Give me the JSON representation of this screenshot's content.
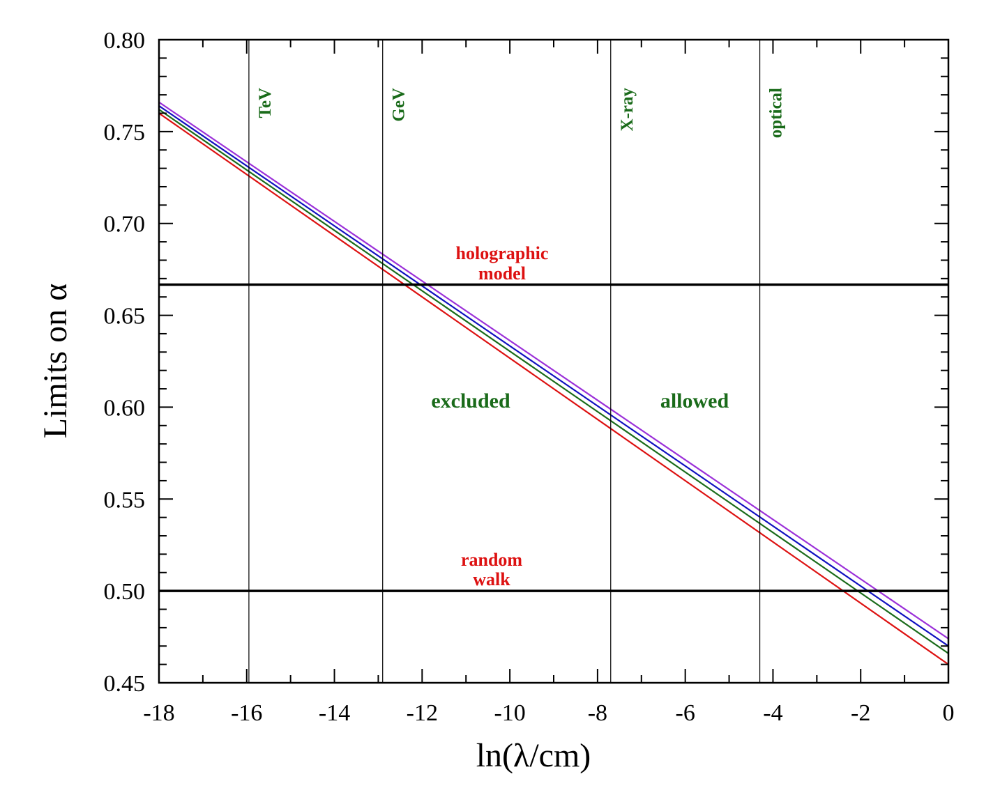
{
  "chart_data": {
    "type": "line",
    "xlabel": "ln(λ/cm)",
    "ylabel": "Limits on α",
    "xlim": [
      -18,
      0
    ],
    "ylim": [
      0.45,
      0.8
    ],
    "x_ticks": [
      -18,
      -16,
      -14,
      -12,
      -10,
      -8,
      -6,
      -4,
      -2,
      0
    ],
    "x_tick_labels": [
      "-18",
      "-16",
      "-14",
      "-12",
      "-10",
      "-8",
      "-6",
      "-4",
      "-2",
      "0"
    ],
    "y_ticks": [
      0.45,
      0.5,
      0.55,
      0.6,
      0.65,
      0.7,
      0.75,
      0.8
    ],
    "y_tick_labels": [
      "0.45",
      "0.50",
      "0.55",
      "0.60",
      "0.65",
      "0.70",
      "0.75",
      "0.80"
    ],
    "grid": false,
    "series": [
      {
        "color": "#9b30d9",
        "x": [
          -18,
          0
        ],
        "y": [
          0.766,
          0.474
        ]
      },
      {
        "color": "#1010c0",
        "x": [
          -18,
          0
        ],
        "y": [
          0.764,
          0.47
        ]
      },
      {
        "color": "#1a6b1a",
        "x": [
          -18,
          0
        ],
        "y": [
          0.762,
          0.466
        ]
      },
      {
        "color": "#dd1111",
        "x": [
          -18,
          0
        ],
        "y": [
          0.76,
          0.46
        ]
      }
    ],
    "horizontal_lines": [
      {
        "y": 0.6667,
        "color": "#000000"
      },
      {
        "y": 0.5,
        "color": "#000000"
      }
    ],
    "vertical_lines": [
      {
        "x": -15.95,
        "label": "TeV"
      },
      {
        "x": -12.9,
        "label": "GeV"
      },
      {
        "x": -7.7,
        "label": "X-ray"
      },
      {
        "x": -4.3,
        "label": "optical"
      }
    ],
    "annotations": {
      "holographic_line1": "holographic",
      "holographic_line2": "model",
      "random_line1": "random",
      "random_line2": "walk",
      "excluded": "excluded",
      "allowed": "allowed"
    },
    "annotation_color_red": "#dd1111",
    "annotation_color_green": "#1a6b1a"
  }
}
